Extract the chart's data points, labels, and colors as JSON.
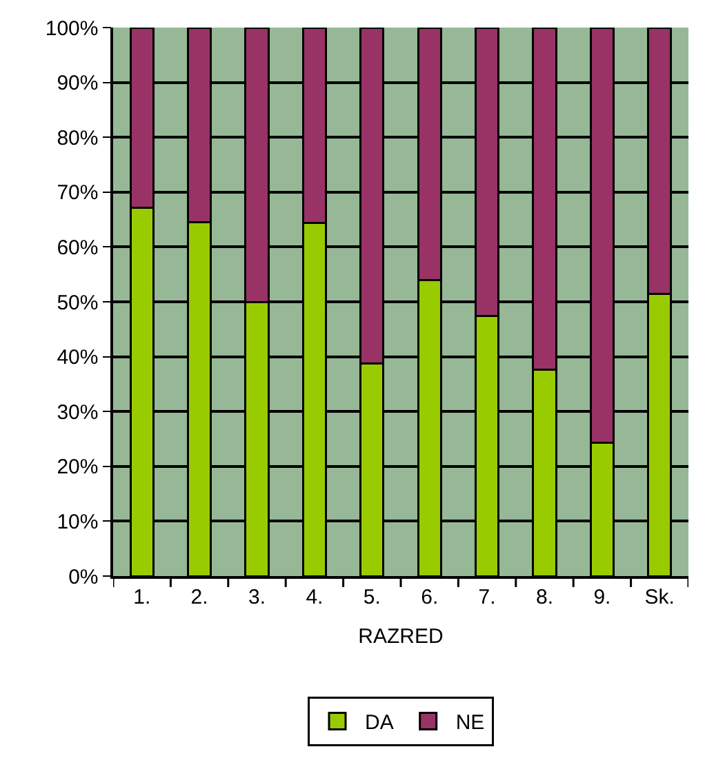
{
  "chart_data": {
    "type": "bar",
    "stacked": true,
    "xlabel": "RAZRED",
    "categories": [
      "1.",
      "2.",
      "3.",
      "4.",
      "5.",
      "6.",
      "7.",
      "8.",
      "9.",
      "Sk."
    ],
    "series": [
      {
        "name": "DA",
        "color": "#99cc00",
        "values": [
          67.2,
          64.5,
          50.0,
          64.4,
          38.7,
          53.9,
          47.4,
          37.6,
          24.3,
          51.5
        ]
      },
      {
        "name": "NE",
        "color": "#993366",
        "values": [
          32.8,
          35.5,
          50.0,
          35.6,
          61.3,
          46.1,
          52.6,
          62.4,
          75.7,
          48.5
        ]
      }
    ],
    "ylim": [
      0,
      100
    ],
    "yticks": [
      {
        "value": 0,
        "label": "0%"
      },
      {
        "value": 10,
        "label": "10%"
      },
      {
        "value": 20,
        "label": "20%"
      },
      {
        "value": 30,
        "label": "30%"
      },
      {
        "value": 40,
        "label": "40%"
      },
      {
        "value": 50,
        "label": "50%"
      },
      {
        "value": 60,
        "label": "60%"
      },
      {
        "value": 70,
        "label": "70%"
      },
      {
        "value": 80,
        "label": "80%"
      },
      {
        "value": 90,
        "label": "90%"
      },
      {
        "value": 100,
        "label": "100%"
      }
    ],
    "grid": "y",
    "legend": "bottom"
  }
}
